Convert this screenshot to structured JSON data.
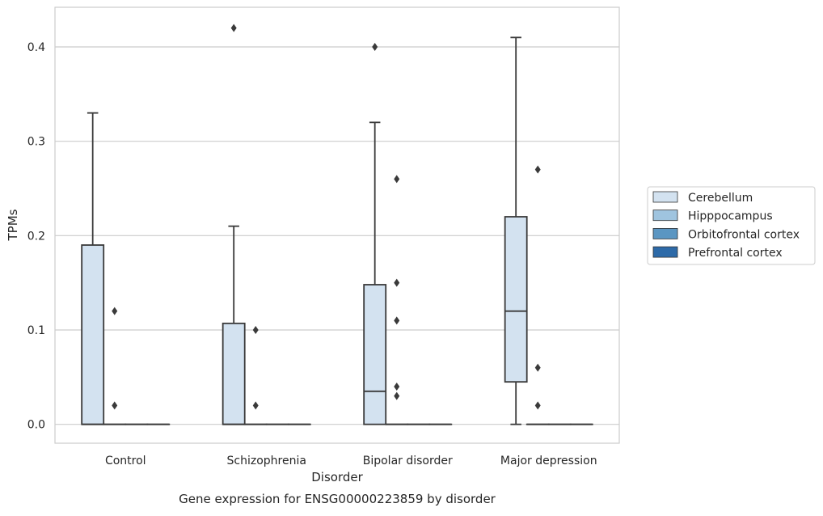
{
  "chart_data": {
    "type": "box",
    "xlabel": "Disorder",
    "ylabel": "TPMs",
    "caption": "Gene expression for ENSG00000223859 by disorder",
    "ylim": [
      -0.02,
      0.442
    ],
    "yticks": [
      0.0,
      0.1,
      0.2,
      0.3,
      0.4
    ],
    "ytick_labels": [
      "0.0",
      "0.1",
      "0.2",
      "0.3",
      "0.4"
    ],
    "categories": [
      "Control",
      "Schizophrenia",
      "Bipolar disorder",
      "Major depression"
    ],
    "grid": "horizontal",
    "legend_position": "right",
    "series": [
      {
        "name": "Cerebellum",
        "color": "#d3e2f0",
        "boxes": [
          {
            "q1": 0.0,
            "median": 0.0,
            "q3": 0.19,
            "whisker_low": 0.0,
            "whisker_high": 0.33,
            "outliers": []
          },
          {
            "q1": 0.0,
            "median": 0.0,
            "q3": 0.107,
            "whisker_low": 0.0,
            "whisker_high": 0.21,
            "outliers": [
              0.42
            ]
          },
          {
            "q1": 0.0,
            "median": 0.035,
            "q3": 0.148,
            "whisker_low": 0.0,
            "whisker_high": 0.32,
            "outliers": [
              0.4
            ]
          },
          {
            "q1": 0.045,
            "median": 0.12,
            "q3": 0.22,
            "whisker_low": 0.0,
            "whisker_high": 0.41,
            "outliers": []
          }
        ]
      },
      {
        "name": "Hipppocampus",
        "color": "#9fc4df",
        "boxes": [
          {
            "q1": 0.0,
            "median": 0.0,
            "q3": 0.0,
            "whisker_low": 0.0,
            "whisker_high": 0.0,
            "outliers": [
              0.12,
              0.02
            ]
          },
          {
            "q1": 0.0,
            "median": 0.0,
            "q3": 0.0,
            "whisker_low": 0.0,
            "whisker_high": 0.0,
            "outliers": [
              0.1,
              0.02
            ]
          },
          {
            "q1": 0.0,
            "median": 0.0,
            "q3": 0.0,
            "whisker_low": 0.0,
            "whisker_high": 0.0,
            "outliers": [
              0.26,
              0.15,
              0.11,
              0.04,
              0.03
            ]
          },
          {
            "q1": 0.0,
            "median": 0.0,
            "q3": 0.0,
            "whisker_low": 0.0,
            "whisker_high": 0.0,
            "outliers": [
              0.27,
              0.06,
              0.02
            ]
          }
        ]
      },
      {
        "name": "Orbitofrontal cortex",
        "color": "#5b96c2",
        "boxes": [
          {
            "q1": 0.0,
            "median": 0.0,
            "q3": 0.0,
            "whisker_low": 0.0,
            "whisker_high": 0.0,
            "outliers": []
          },
          {
            "q1": 0.0,
            "median": 0.0,
            "q3": 0.0,
            "whisker_low": 0.0,
            "whisker_high": 0.0,
            "outliers": []
          },
          {
            "q1": 0.0,
            "median": 0.0,
            "q3": 0.0,
            "whisker_low": 0.0,
            "whisker_high": 0.0,
            "outliers": []
          },
          {
            "q1": 0.0,
            "median": 0.0,
            "q3": 0.0,
            "whisker_low": 0.0,
            "whisker_high": 0.0,
            "outliers": []
          }
        ]
      },
      {
        "name": "Prefrontal cortex",
        "color": "#2d6aa8",
        "boxes": [
          {
            "q1": 0.0,
            "median": 0.0,
            "q3": 0.0,
            "whisker_low": 0.0,
            "whisker_high": 0.0,
            "outliers": []
          },
          {
            "q1": 0.0,
            "median": 0.0,
            "q3": 0.0,
            "whisker_low": 0.0,
            "whisker_high": 0.0,
            "outliers": []
          },
          {
            "q1": 0.0,
            "median": 0.0,
            "q3": 0.0,
            "whisker_low": 0.0,
            "whisker_high": 0.0,
            "outliers": []
          },
          {
            "q1": 0.0,
            "median": 0.0,
            "q3": 0.0,
            "whisker_low": 0.0,
            "whisker_high": 0.0,
            "outliers": []
          }
        ]
      }
    ],
    "colors": {
      "axis_frame": "#cccccc",
      "grid": "#cccccc",
      "box_edge": "#3a3a3a",
      "text": "#262626"
    }
  }
}
